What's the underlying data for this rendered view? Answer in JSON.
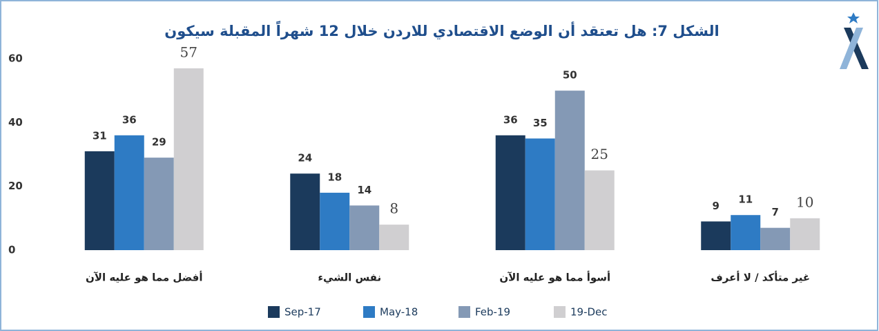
{
  "chart_data": {
    "type": "bar",
    "title": "الشكل 7: هل تعتقد أن الوضع الاقتصادي للاردن خلال 12 شهراً المقبلة سيكون",
    "categories": [
      "أفضل مما هو عليه الآن",
      "نفس الشيء",
      "أسوأ مما هو عليه الآن",
      "غير متأكد / لا أعرف"
    ],
    "series": [
      {
        "name": "Sep-17",
        "color": "#1b3a5c",
        "values": [
          31,
          24,
          36,
          9
        ]
      },
      {
        "name": "May-18",
        "color": "#2e7bc4",
        "values": [
          36,
          18,
          35,
          11
        ]
      },
      {
        "name": "Feb-19",
        "color": "#8499b5",
        "values": [
          29,
          14,
          50,
          7
        ]
      },
      {
        "name": "19-Dec",
        "color": "#d0cfd1",
        "values": [
          57,
          8,
          25,
          10
        ]
      }
    ],
    "ylim": [
      0,
      60
    ],
    "yticks": [
      0,
      20,
      40,
      60
    ],
    "grid": false
  }
}
